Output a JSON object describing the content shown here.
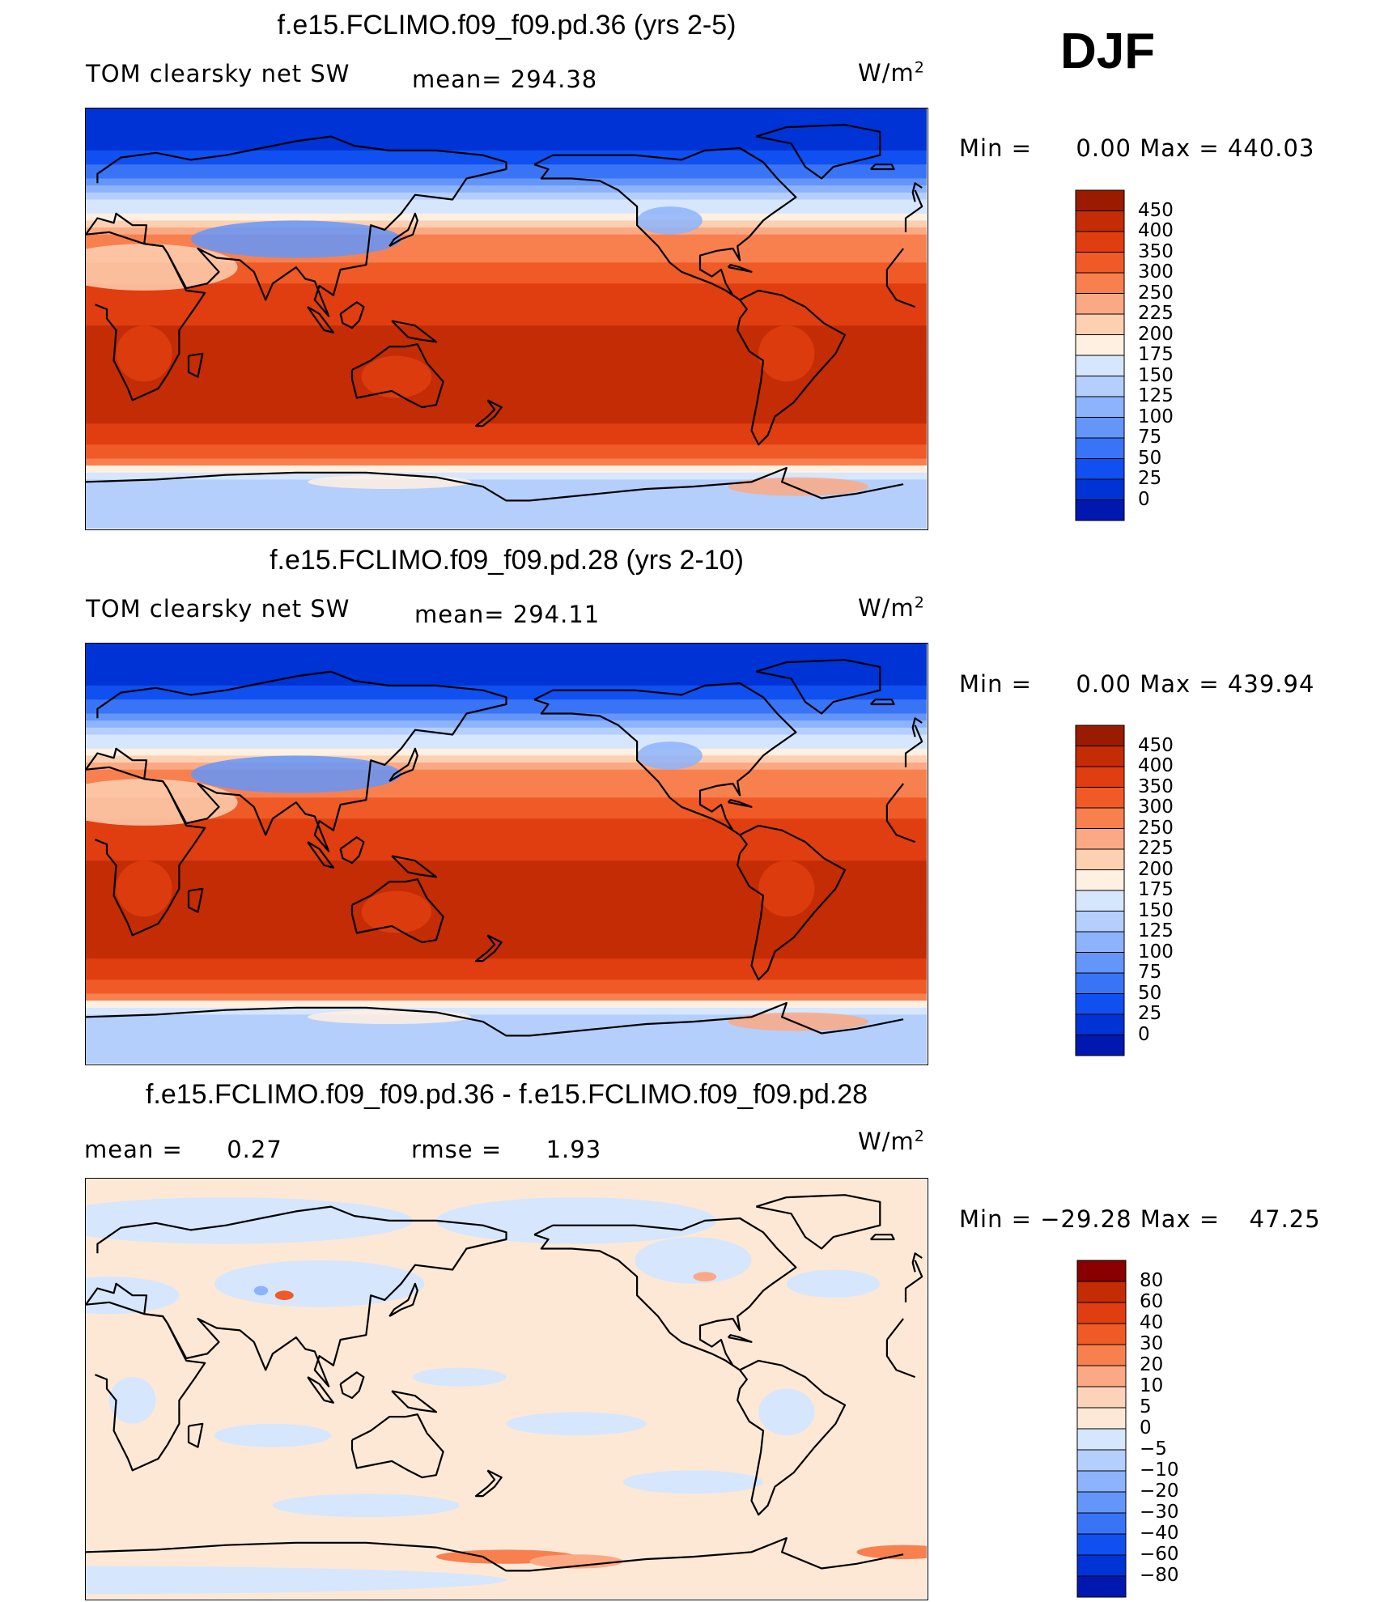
{
  "season": "DJF",
  "colors": {
    "seq": [
      "#00008a",
      "#0018b0",
      "#0033d6",
      "#1050f0",
      "#3a74f6",
      "#6496f9",
      "#8cb3fb",
      "#b4cffc",
      "#d6e6fd",
      "#fff0e2",
      "#fdd0b2",
      "#fba984",
      "#f8804f",
      "#ef5a26",
      "#e03e10",
      "#c42c05",
      "#9a1b00",
      "#6e0f00"
    ],
    "div": [
      "#00008a",
      "#0018b0",
      "#0033d6",
      "#1050f0",
      "#3a74f6",
      "#6496f9",
      "#8cb3fb",
      "#b4cffc",
      "#d6e6fd",
      "#fde8d6",
      "#fcd2b8",
      "#fba984",
      "#f8804f",
      "#ef5a26",
      "#e03e10",
      "#c42c05",
      "#8a0000"
    ],
    "land_stroke": "#000000"
  },
  "chart_data": [
    {
      "type": "heatmap",
      "title": "f.e15.FCLIMO.f09_f09.pd.36 (yrs 2-5)",
      "left_label": "TOM clearsky net SW",
      "center_label": "mean= 294.38",
      "units": "W/m",
      "units_sup": "2",
      "min_label": "Min =",
      "min_value": "0.00",
      "max_label": "Max =",
      "max_value": "440.03",
      "colorbar_ticks": [
        "450",
        "400",
        "350",
        "300",
        "250",
        "225",
        "200",
        "175",
        "150",
        "125",
        "100",
        "75",
        "50",
        "25",
        "0"
      ],
      "lat_profile": [
        {
          "lat": 90,
          "value": 0
        },
        {
          "lat": 75,
          "value": 20
        },
        {
          "lat": 62,
          "value": 60
        },
        {
          "lat": 52,
          "value": 140
        },
        {
          "lat": 42,
          "value": 200
        },
        {
          "lat": 30,
          "value": 280
        },
        {
          "lat": 15,
          "value": 345
        },
        {
          "lat": 0,
          "value": 395
        },
        {
          "lat": -15,
          "value": 420
        },
        {
          "lat": -35,
          "value": 430
        },
        {
          "lat": -50,
          "value": 380
        },
        {
          "lat": -58,
          "value": 320
        },
        {
          "lat": -64,
          "value": 200
        },
        {
          "lat": -70,
          "value": 140
        },
        {
          "lat": -90,
          "value": 130
        }
      ]
    },
    {
      "type": "heatmap",
      "title": "f.e15.FCLIMO.f09_f09.pd.28 (yrs 2-10)",
      "left_label": "TOM clearsky net SW",
      "center_label": "mean= 294.11",
      "units": "W/m",
      "units_sup": "2",
      "min_label": "Min =",
      "min_value": "0.00",
      "max_label": "Max =",
      "max_value": "439.94",
      "colorbar_ticks": [
        "450",
        "400",
        "350",
        "300",
        "250",
        "225",
        "200",
        "175",
        "150",
        "125",
        "100",
        "75",
        "50",
        "25",
        "0"
      ],
      "lat_profile": [
        {
          "lat": 90,
          "value": 0
        },
        {
          "lat": 75,
          "value": 20
        },
        {
          "lat": 62,
          "value": 60
        },
        {
          "lat": 52,
          "value": 140
        },
        {
          "lat": 42,
          "value": 200
        },
        {
          "lat": 30,
          "value": 280
        },
        {
          "lat": 15,
          "value": 345
        },
        {
          "lat": 0,
          "value": 395
        },
        {
          "lat": -15,
          "value": 420
        },
        {
          "lat": -35,
          "value": 430
        },
        {
          "lat": -50,
          "value": 380
        },
        {
          "lat": -58,
          "value": 320
        },
        {
          "lat": -64,
          "value": 200
        },
        {
          "lat": -70,
          "value": 140
        },
        {
          "lat": -90,
          "value": 130
        }
      ]
    },
    {
      "type": "heatmap",
      "title": "f.e15.FCLIMO.f09_f09.pd.36 - f.e15.FCLIMO.f09_f09.pd.28",
      "left_label": "mean =",
      "left_value": "0.27",
      "center_label": "rmse =",
      "center_value": "1.93",
      "units": "W/m",
      "units_sup": "2",
      "min_label": "Min =",
      "min_value": "−29.28",
      "max_label": "Max =",
      "max_value": "47.25",
      "colorbar_ticks": [
        "80",
        "60",
        "40",
        "30",
        "20",
        "10",
        "5",
        "0",
        "−5",
        "−10",
        "−20",
        "−30",
        "−40",
        "−60",
        "−80"
      ]
    }
  ]
}
